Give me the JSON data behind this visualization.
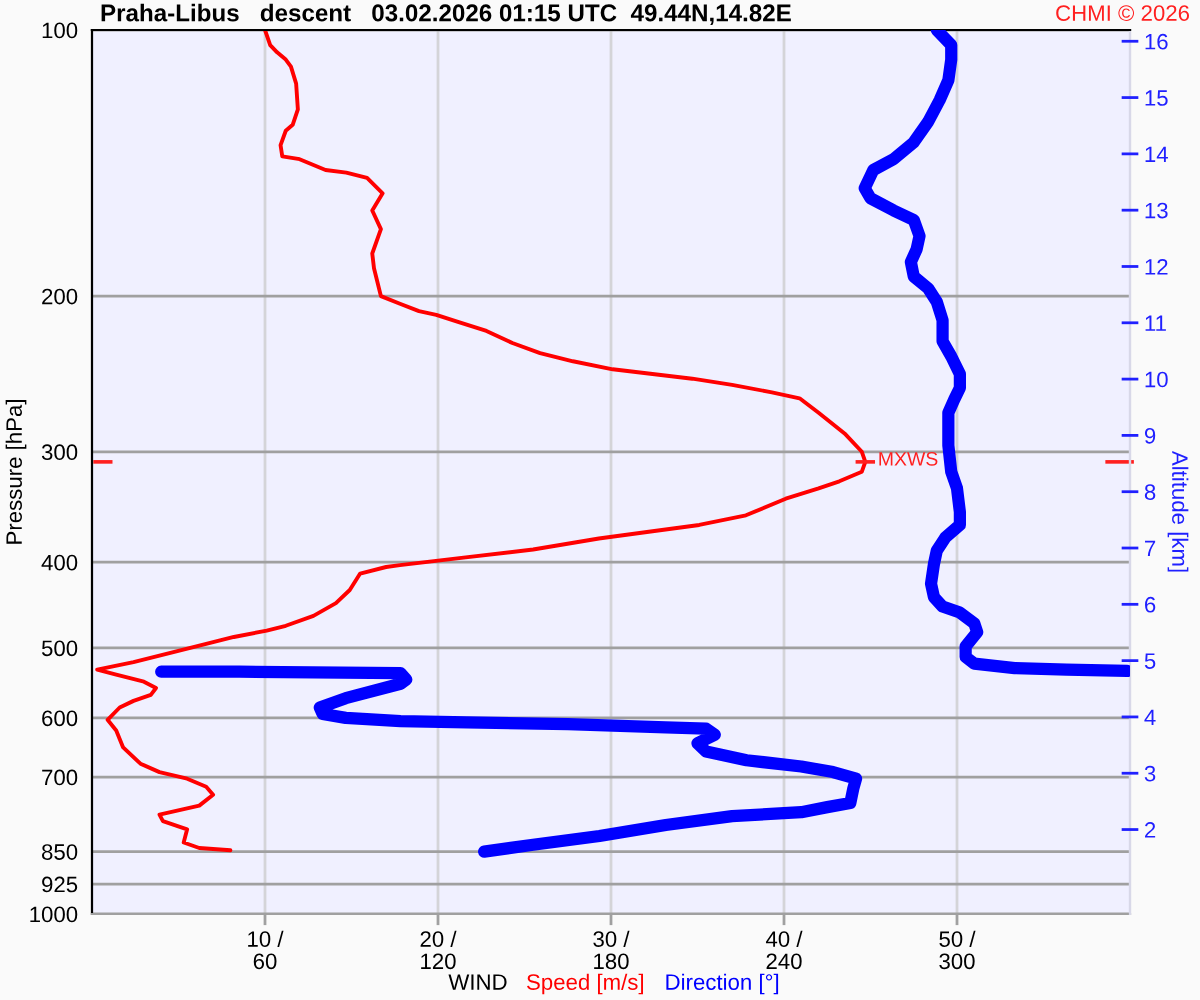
{
  "chart_data": {
    "type": "line",
    "title": "Praha-Libus   descent   03.02.2026 01:15 UTC  49.44N,14.82E",
    "xlabel": "WIND",
    "ylabel": "Pressure [hPa]",
    "y2label": "Altitude [km]",
    "annotations": [
      "CHMI © 2026",
      {
        "text": "MXWS",
        "x": 44.7,
        "y": 308
      }
    ],
    "xlim": [
      0,
      60
    ],
    "xticks": [
      {
        "value": 10,
        "label": "10 /"
      },
      {
        "value": 20,
        "label": "20 /"
      },
      {
        "value": 30,
        "label": "30 /"
      },
      {
        "value": 40,
        "label": "40 /"
      },
      {
        "value": 50,
        "label": "50 /"
      }
    ],
    "x2lim": [
      0,
      360
    ],
    "x2ticks": [
      60,
      120,
      180,
      240,
      300
    ],
    "log": "y",
    "ylim": [
      1000,
      100
    ],
    "yticks": [
      100,
      200,
      300,
      400,
      500,
      600,
      700,
      850,
      925,
      1000
    ],
    "y2lim": [
      0.5,
      16.2
    ],
    "y2ticks": [
      2,
      3,
      4,
      5,
      6,
      7,
      8,
      9,
      10,
      11,
      12,
      13,
      14,
      15,
      16
    ],
    "grid": true,
    "legend": "bottom",
    "series": [
      {
        "name": "Speed [m/s]",
        "color": "#ff0000",
        "x": [
          10.0,
          10.3,
          10.7,
          11.2,
          11.5,
          11.8,
          11.9,
          11.6,
          11.2,
          10.9,
          11.0,
          12.0,
          13.5,
          14.7,
          15.9,
          16.8,
          16.2,
          16.7,
          16.2,
          16.3,
          16.7,
          17.8,
          18.9,
          19.9,
          21.2,
          22.8,
          24.3,
          25.9,
          27.8,
          30.1,
          32.4,
          34.7,
          37.0,
          39.3,
          40.9,
          42.0,
          43.5,
          44.5,
          44.7,
          44.5,
          43.2,
          42.0,
          40.1,
          37.8,
          35.1,
          32.4,
          29.3,
          25.5,
          21.6,
          17.8,
          17.0,
          15.5,
          14.9,
          14.1,
          12.8,
          11.2,
          10.1,
          8.2,
          6.2,
          4.3,
          2.4,
          0.3,
          1.4,
          3.0,
          3.7,
          3.4,
          2.4,
          1.6,
          0.9,
          1.4,
          1.8,
          2.8,
          3.9,
          5.5,
          6.6,
          7.0,
          6.2,
          3.9,
          4.1,
          5.5,
          5.3,
          6.2,
          8.0
        ],
        "values": [
          100,
          104,
          106,
          108,
          110,
          115,
          123,
          128,
          130,
          135,
          139,
          140,
          144,
          145,
          147,
          153,
          160,
          168,
          179,
          186,
          200,
          204,
          208,
          210,
          214,
          219,
          226,
          232,
          237,
          242,
          245,
          248,
          252,
          257,
          261,
          271,
          286,
          300,
          308,
          316,
          324,
          330,
          339,
          354,
          363,
          369,
          376,
          387,
          395,
          403,
          405,
          412,
          430,
          445,
          460,
          472,
          478,
          486,
          497,
          508,
          519,
          529,
          536,
          546,
          555,
          565,
          574,
          584,
          603,
          620,
          648,
          676,
          691,
          703,
          718,
          733,
          754,
          772,
          785,
          802,
          830,
          842,
          847
        ]
      },
      {
        "name": "Direction [°]",
        "color": "#0000ff",
        "axis": "x2",
        "x": [
          293,
          298,
          298,
          297,
          294,
          290,
          285,
          278,
          271,
          268,
          270,
          278,
          285,
          287,
          286,
          284,
          285,
          290,
          293,
          295,
          295,
          298,
          301,
          301,
          299,
          297,
          297,
          298,
          300,
          301,
          301,
          296,
          293,
          292,
          291,
          292,
          295,
          301,
          306,
          307,
          303,
          303,
          306,
          320,
          338,
          359,
          null,
          24,
          51,
          107,
          109,
          107,
          88,
          79,
          80,
          88,
          107,
          130,
          165,
          199,
          213,
          216,
          210,
          213,
          227,
          246,
          257,
          265,
          264,
          263,
          255,
          246,
          222,
          199,
          176,
          153,
          136
        ],
        "values": [
          100,
          104,
          108,
          114,
          120,
          127,
          134,
          140,
          144,
          151,
          155,
          160,
          164,
          171,
          177,
          183,
          190,
          196,
          203,
          213,
          225,
          234,
          245,
          254,
          262,
          271,
          295,
          316,
          330,
          351,
          363,
          375,
          388,
          402,
          423,
          438,
          449,
          456,
          469,
          480,
          498,
          512,
          521,
          527,
          529,
          531,
          null,
          532,
          532,
          534,
          543,
          549,
          570,
          584,
          594,
          600,
          605,
          607,
          610,
          615,
          617,
          627,
          641,
          655,
          670,
          681,
          691,
          703,
          722,
          749,
          757,
          767,
          775,
          793,
          816,
          835,
          850
        ]
      }
    ]
  }
}
